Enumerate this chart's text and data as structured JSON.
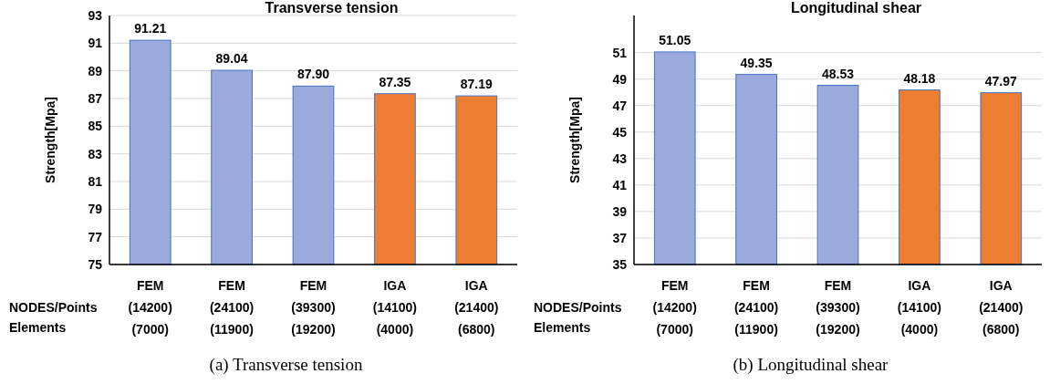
{
  "chart_data": [
    {
      "type": "bar",
      "title": "Transverse tension",
      "ylabel": "Strength[Mpa]",
      "categories": [
        "FEM\n(14200)\n(7000)",
        "FEM\n(24100)\n(11900)",
        "FEM\n(39300)\n(19200)",
        "IGA\n(14100)\n(4000)",
        "IGA\n(21400)\n(6800)"
      ],
      "values": [
        91.21,
        89.04,
        87.9,
        87.35,
        87.19
      ],
      "value_labels": [
        "91.21",
        "89.04",
        "87.90",
        "87.35",
        "87.19"
      ],
      "colors": [
        "#9aaadd",
        "#9aaadd",
        "#9aaadd",
        "#ef7d33",
        "#ed7d31"
      ],
      "ylim": [
        75,
        93
      ],
      "yticks": [
        75,
        77,
        79,
        81,
        83,
        85,
        87,
        89,
        91,
        93
      ],
      "grid": "y",
      "annotations": [
        "NODES/Points",
        "Elements",
        "(a) Transverse tension"
      ]
    },
    {
      "type": "bar",
      "title": "Longitudinal shear",
      "ylabel": "Strength[Mpa]",
      "categories": [
        "FEM\n(14200)\n(7000)",
        "FEM\n(24100)\n(11900)",
        "FEM\n(39300)\n(19200)",
        "IGA\n(14100)\n(4000)",
        "IGA\n(21400)\n(6800)"
      ],
      "values": [
        51.05,
        49.35,
        48.53,
        48.18,
        47.97
      ],
      "value_labels": [
        "51.05",
        "49.35",
        "48.53",
        "48.18",
        "47.97"
      ],
      "colors": [
        "#9aaadd",
        "#9aaadd",
        "#9aaadd",
        "#ed7d31",
        "#ed7d31"
      ],
      "ylim": [
        35,
        53.8
      ],
      "yticks": [
        35,
        37,
        39,
        41,
        43,
        45,
        47,
        49,
        51
      ],
      "grid": "y",
      "annotations": [
        "NODES/Points",
        "Elements",
        "(b) Longitudinal shear"
      ]
    }
  ]
}
